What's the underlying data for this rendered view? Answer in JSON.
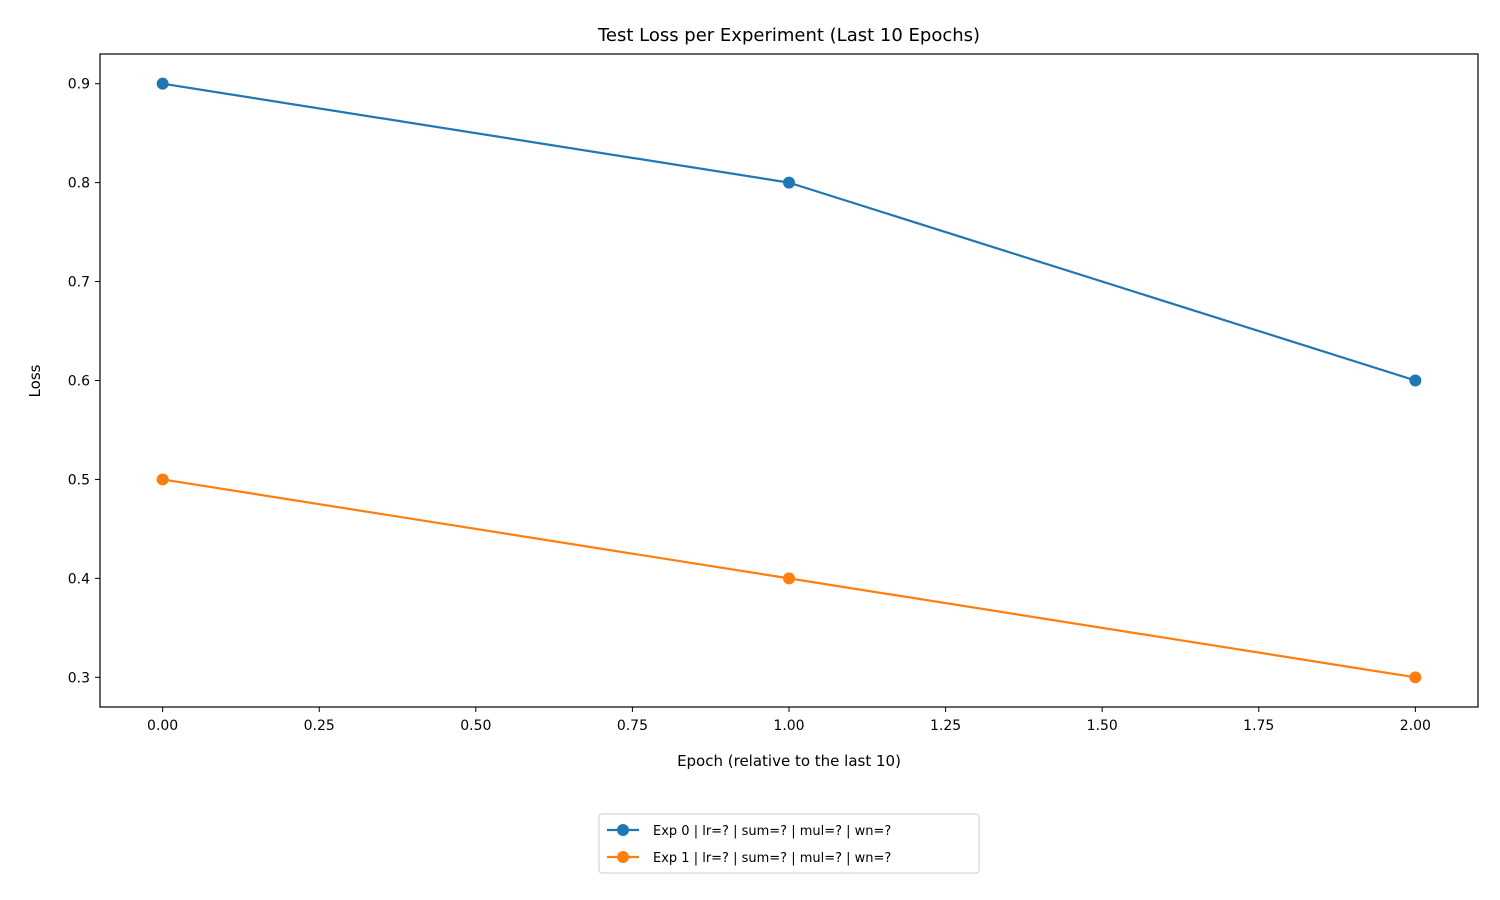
{
  "chart_data": {
    "type": "line",
    "title": "Test Loss per Experiment (Last 10 Epochs)",
    "xlabel": "Epoch (relative to the last 10)",
    "ylabel": "Loss",
    "xlim": [
      -0.1,
      2.1
    ],
    "ylim": [
      0.27,
      0.93
    ],
    "x_ticks": [
      0.0,
      0.25,
      0.5,
      0.75,
      1.0,
      1.25,
      1.5,
      1.75,
      2.0
    ],
    "x_tick_labels": [
      "0.00",
      "0.25",
      "0.50",
      "0.75",
      "1.00",
      "1.25",
      "1.50",
      "1.75",
      "2.00"
    ],
    "y_ticks": [
      0.3,
      0.4,
      0.5,
      0.6,
      0.7,
      0.8,
      0.9
    ],
    "y_tick_labels": [
      "0.3",
      "0.4",
      "0.5",
      "0.6",
      "0.7",
      "0.8",
      "0.9"
    ],
    "grid": false,
    "legend_position": "bottom-center, below axes",
    "x": [
      0,
      1,
      2
    ],
    "series": [
      {
        "name": "Exp 0 | lr=? | sum=? | mul=? | wn=?",
        "color": "#1f77b4",
        "values": [
          0.9,
          0.8,
          0.6
        ]
      },
      {
        "name": "Exp 1 | lr=? | sum=? | mul=? | wn=?",
        "color": "#ff7f0e",
        "values": [
          0.5,
          0.4,
          0.3
        ]
      }
    ]
  }
}
